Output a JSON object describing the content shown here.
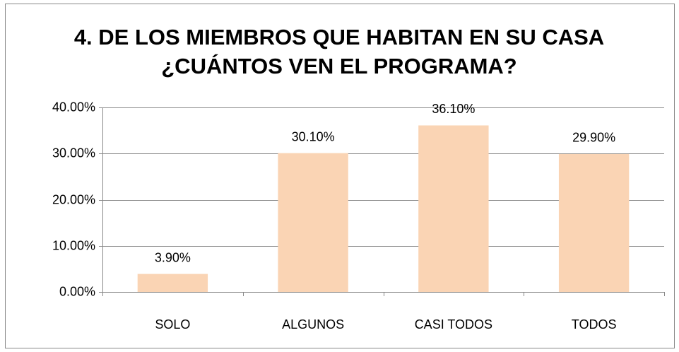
{
  "chart_data": {
    "type": "bar",
    "title": "4. DE LOS MIEMBROS QUE HABITAN EN SU CASA ¿CUÁNTOS VEN EL PROGRAMA?",
    "categories": [
      "SOLO",
      "ALGUNOS",
      "CASI TODOS",
      "TODOS"
    ],
    "values": [
      3.9,
      30.1,
      36.1,
      29.9
    ],
    "value_labels": [
      "3.90%",
      "30.10%",
      "36.10%",
      "29.90%"
    ],
    "color": "#fad4b4",
    "ylim": [
      0,
      40
    ],
    "yticks": [
      {
        "value": 0,
        "label": "0.00%"
      },
      {
        "value": 10,
        "label": "10.00%"
      },
      {
        "value": 20,
        "label": "20.00%"
      },
      {
        "value": 30,
        "label": "30.00%"
      },
      {
        "value": 40,
        "label": "40.00%"
      }
    ],
    "grid": true
  }
}
